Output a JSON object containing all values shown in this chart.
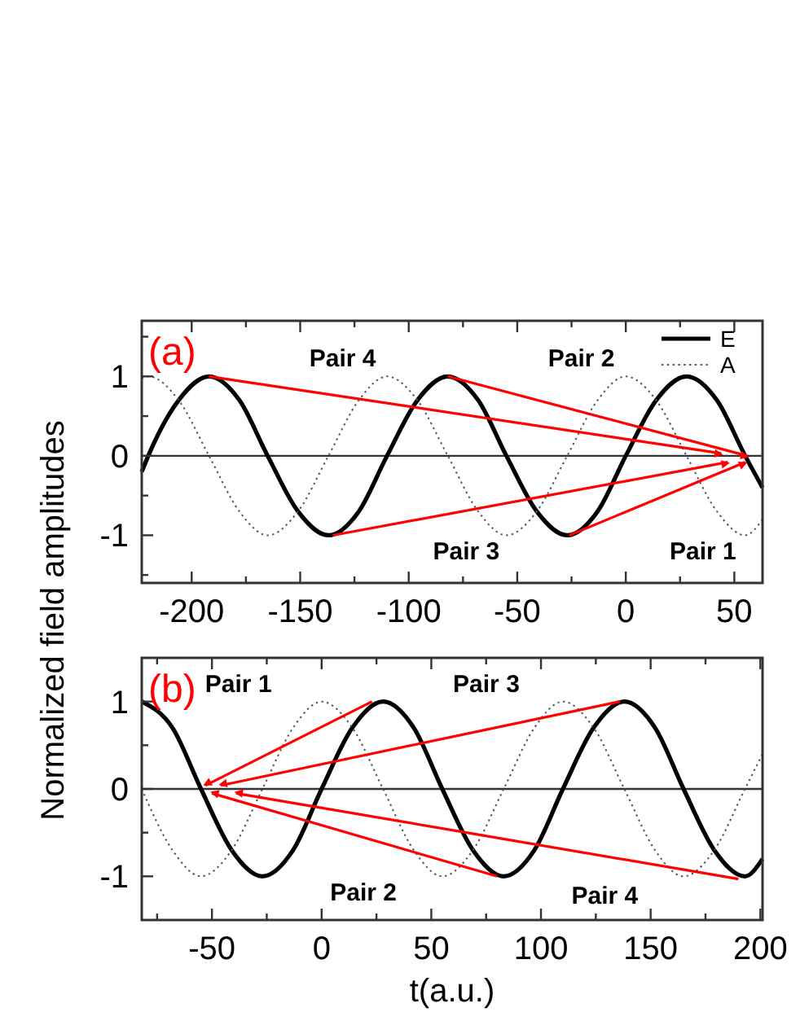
{
  "chart_data": [
    {
      "type": "line",
      "ylabel": "Normalized field amplitudes",
      "xlim": [
        -223,
        63
      ],
      "ylim": [
        -1.6,
        1.7
      ],
      "xticks": [
        -200,
        {
          "value": -175,
          "label": null
        },
        -150,
        {
          "value": -125,
          "label": null
        },
        -100,
        {
          "value": -75,
          "label": null
        },
        -50,
        {
          "value": -25,
          "label": null
        },
        0,
        {
          "value": 25,
          "label": null
        },
        50
      ],
      "yticks": [
        {
          "value": -1.5,
          "label": null
        },
        -1,
        {
          "value": -0.5,
          "label": null
        },
        0,
        {
          "value": 0.5,
          "label": null
        },
        1,
        {
          "value": 1.5,
          "label": null
        }
      ],
      "legend": "top right",
      "grid": false,
      "ref_lines": [
        {
          "axis": "y",
          "value": 0,
          "color": "#333333"
        }
      ],
      "annotations": [
        "(a)",
        "Pair 4",
        "Pair 2",
        "Pair 3",
        "Pair 1"
      ],
      "series": [
        {
          "name": "E",
          "color": "#000000",
          "line_style": "solid",
          "x": [
            -223,
            -220,
            -206,
            -192,
            -178,
            -165,
            -151,
            -137,
            -123,
            -110,
            -96,
            -82,
            -68,
            -55,
            -41,
            -27,
            -13,
            0,
            14,
            28,
            42,
            55,
            63
          ],
          "values": [
            -0.2,
            0,
            0.7,
            1,
            0.7,
            0,
            -0.7,
            -1,
            -0.7,
            0,
            0.7,
            1,
            0.7,
            0,
            -0.7,
            -1,
            -0.7,
            0,
            0.7,
            1,
            0.7,
            0,
            -0.4
          ]
        },
        {
          "name": "A",
          "color": "#555555",
          "line_style": "dotted",
          "x": [
            -223,
            -220,
            -206,
            -192,
            -178,
            -165,
            -151,
            -137,
            -123,
            -110,
            -96,
            -82,
            -68,
            -55,
            -41,
            -27,
            -13,
            0,
            14,
            28,
            42,
            55,
            63
          ],
          "values": [
            0.98,
            1,
            0.7,
            0,
            -0.7,
            -1,
            -0.7,
            0,
            0.7,
            1,
            0.7,
            0,
            -0.7,
            -1,
            -0.7,
            0,
            0.7,
            1,
            0.7,
            0,
            -0.7,
            -1,
            -0.8
          ]
        },
        {
          "color": "#ff0000",
          "line_style": "solid",
          "x": [
            -192,
            44
          ],
          "values": [
            1,
            0.03
          ]
        },
        {
          "color": "#ff0000",
          "line_style": "solid",
          "x": [
            -82,
            56
          ],
          "values": [
            1,
            0
          ]
        },
        {
          "color": "#ff0000",
          "line_style": "solid",
          "x": [
            -135,
            47
          ],
          "values": [
            -1,
            -0.08
          ]
        },
        {
          "color": "#ff0000",
          "line_style": "solid",
          "x": [
            -26,
            55
          ],
          "values": [
            -1,
            -0.08
          ]
        }
      ]
    },
    {
      "type": "line",
      "xlabel": "t(a.u.)",
      "xlim": [
        -82,
        201
      ],
      "ylim": [
        -1.5,
        1.5
      ],
      "xticks": [
        {
          "value": -75,
          "label": null
        },
        -50,
        {
          "value": -25,
          "label": null
        },
        0,
        {
          "value": 25,
          "label": null
        },
        50,
        {
          "value": 75,
          "label": null
        },
        100,
        {
          "value": 125,
          "label": null
        },
        150,
        {
          "value": 175,
          "label": null
        },
        200
      ],
      "yticks": [
        -1,
        {
          "value": -0.5,
          "label": null
        },
        0,
        {
          "value": 0.5,
          "label": null
        },
        1
      ],
      "grid": false,
      "ref_lines": [
        {
          "axis": "y",
          "value": 0,
          "color": "#333333"
        }
      ],
      "annotations": [
        "(b)",
        "Pair 1",
        "Pair 3",
        "Pair 2",
        "Pair 4"
      ],
      "series": [
        {
          "color": "#000000",
          "line_style": "solid",
          "x": [
            -82,
            -68,
            -55,
            -41,
            -27,
            -13,
            0,
            14,
            28,
            42,
            55,
            69,
            83,
            97,
            110,
            124,
            138,
            152,
            165,
            179,
            193,
            201
          ],
          "values": [
            1,
            0.7,
            0,
            -0.7,
            -1,
            -0.7,
            0,
            0.7,
            1,
            0.7,
            0,
            -0.7,
            -1,
            -0.7,
            0,
            0.7,
            1,
            0.7,
            0,
            -0.7,
            -1,
            -0.8
          ]
        },
        {
          "color": "#555555",
          "line_style": "dotted",
          "x": [
            -82,
            -68,
            -55,
            -41,
            -27,
            -13,
            0,
            14,
            28,
            42,
            55,
            69,
            83,
            97,
            110,
            124,
            138,
            152,
            165,
            179,
            193,
            201
          ],
          "values": [
            0,
            -0.7,
            -1,
            -0.7,
            0,
            0.7,
            1,
            0.7,
            0,
            -0.7,
            -1,
            -0.7,
            0,
            0.7,
            1,
            0.7,
            0,
            -0.7,
            -1,
            -0.7,
            0,
            0.4
          ]
        },
        {
          "color": "#ff0000",
          "line_style": "solid",
          "x": [
            23,
            -53
          ],
          "values": [
            1,
            0.04
          ]
        },
        {
          "color": "#ff0000",
          "line_style": "solid",
          "x": [
            136,
            -46
          ],
          "values": [
            1,
            0.04
          ]
        },
        {
          "color": "#ff0000",
          "line_style": "solid",
          "x": [
            80,
            -50
          ],
          "values": [
            -1,
            -0.05
          ]
        },
        {
          "color": "#ff0000",
          "line_style": "solid",
          "x": [
            190,
            -39
          ],
          "values": [
            -1.03,
            -0.05
          ]
        }
      ]
    }
  ]
}
